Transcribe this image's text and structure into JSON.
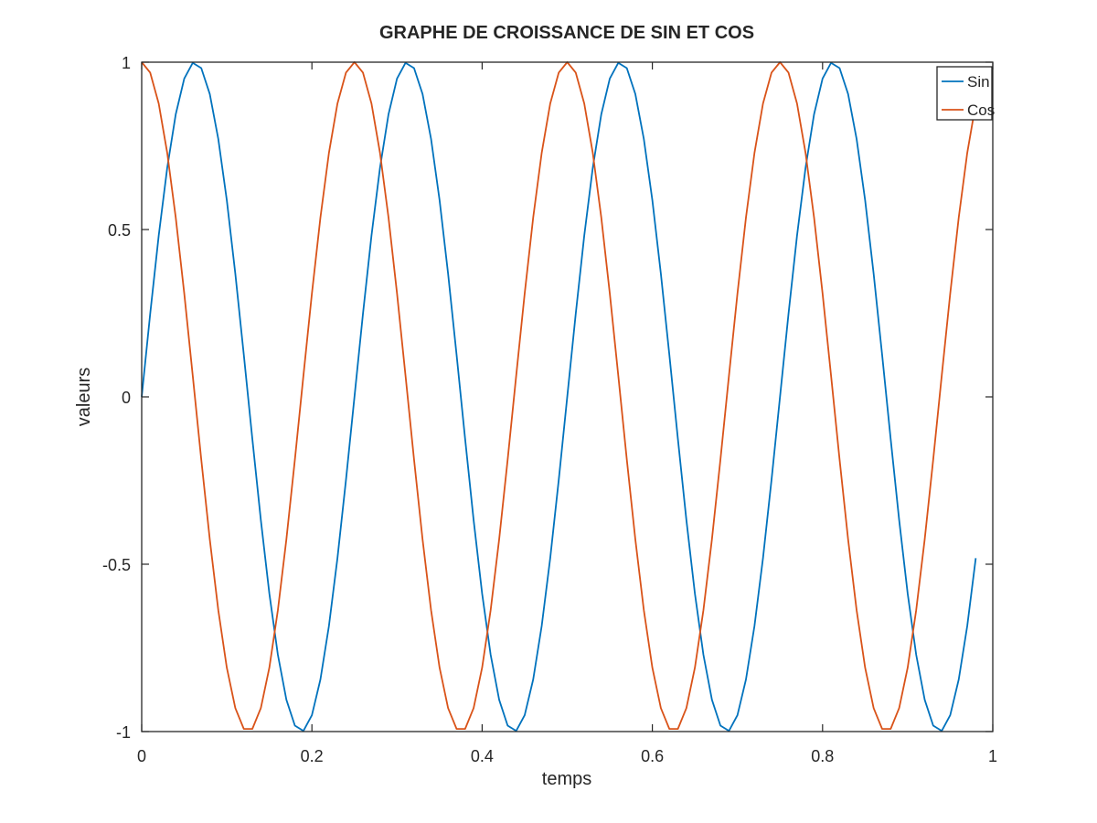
{
  "chart_data": {
    "type": "line",
    "title": "GRAPHE DE CROISSANCE DE SIN ET COS",
    "xlabel": "temps",
    "ylabel": "valeurs",
    "xlim": [
      0,
      1
    ],
    "ylim": [
      -1,
      1
    ],
    "x_ticks": [
      0,
      0.2,
      0.4,
      0.6,
      0.8,
      1
    ],
    "x_tick_labels": [
      "0",
      "0.2",
      "0.4",
      "0.6",
      "0.8",
      "1"
    ],
    "y_ticks": [
      -1,
      -0.5,
      0,
      0.5,
      1
    ],
    "y_tick_labels": [
      "-1",
      "-0.5",
      "0",
      "0.5",
      "1"
    ],
    "grid": false,
    "legend_position": "top-right",
    "series": [
      {
        "name": "Sin",
        "color": "#0072bd",
        "x": [
          0,
          0.01,
          0.02,
          0.03,
          0.04,
          0.05,
          0.06,
          0.07,
          0.08,
          0.09,
          0.1,
          0.11,
          0.12,
          0.13,
          0.14,
          0.15,
          0.16,
          0.17,
          0.18,
          0.19,
          0.2,
          0.21,
          0.22,
          0.23,
          0.24,
          0.25,
          0.26,
          0.27,
          0.28,
          0.29,
          0.3,
          0.31,
          0.32,
          0.33,
          0.34,
          0.35,
          0.36,
          0.37,
          0.38,
          0.39,
          0.4,
          0.41,
          0.42,
          0.43,
          0.44,
          0.45,
          0.46,
          0.47,
          0.48,
          0.49,
          0.5,
          0.51,
          0.52,
          0.53,
          0.54,
          0.55,
          0.56,
          0.57,
          0.58,
          0.59,
          0.6,
          0.61,
          0.62,
          0.63,
          0.64,
          0.65,
          0.66,
          0.67,
          0.68,
          0.69,
          0.7,
          0.71,
          0.72,
          0.73,
          0.74,
          0.75,
          0.76,
          0.77,
          0.78,
          0.79,
          0.8,
          0.81,
          0.82,
          0.83,
          0.84,
          0.85,
          0.86,
          0.87,
          0.88,
          0.89,
          0.9,
          0.91,
          0.92,
          0.93,
          0.94,
          0.95,
          0.96,
          0.97,
          0.98
        ],
        "y": [
          0,
          0.2487,
          0.4818,
          0.6845,
          0.8443,
          0.9511,
          0.998,
          0.9823,
          0.9048,
          0.7705,
          0.5878,
          0.3681,
          0.1253,
          -0.1253,
          -0.3681,
          -0.5878,
          -0.7705,
          -0.9048,
          -0.9823,
          -0.998,
          -0.9511,
          -0.8443,
          -0.6845,
          -0.4818,
          -0.2487,
          0,
          0.2487,
          0.4818,
          0.6845,
          0.8443,
          0.9511,
          0.998,
          0.9823,
          0.9048,
          0.7705,
          0.5878,
          0.3681,
          0.1253,
          -0.1253,
          -0.3681,
          -0.5878,
          -0.7705,
          -0.9048,
          -0.9823,
          -0.998,
          -0.9511,
          -0.8443,
          -0.6845,
          -0.4818,
          -0.2487,
          0,
          0.2487,
          0.4818,
          0.6845,
          0.8443,
          0.9511,
          0.998,
          0.9823,
          0.9048,
          0.7705,
          0.5878,
          0.3681,
          0.1253,
          -0.1253,
          -0.3681,
          -0.5878,
          -0.7705,
          -0.9048,
          -0.9823,
          -0.998,
          -0.9511,
          -0.8443,
          -0.6845,
          -0.4818,
          -0.2487,
          0,
          0.2487,
          0.4818,
          0.6845,
          0.8443,
          0.9511,
          0.998,
          0.9823,
          0.9048,
          0.7705,
          0.5878,
          0.3681,
          0.1253,
          -0.1253,
          -0.3681,
          -0.5878,
          -0.7705,
          -0.9048,
          -0.9823,
          -0.998,
          -0.9511,
          -0.8443,
          -0.6845,
          -0.4818
        ]
      },
      {
        "name": "Cos",
        "color": "#d95319",
        "x": [
          0,
          0.01,
          0.02,
          0.03,
          0.04,
          0.05,
          0.06,
          0.07,
          0.08,
          0.09,
          0.1,
          0.11,
          0.12,
          0.13,
          0.14,
          0.15,
          0.16,
          0.17,
          0.18,
          0.19,
          0.2,
          0.21,
          0.22,
          0.23,
          0.24,
          0.25,
          0.26,
          0.27,
          0.28,
          0.29,
          0.3,
          0.31,
          0.32,
          0.33,
          0.34,
          0.35,
          0.36,
          0.37,
          0.38,
          0.39,
          0.4,
          0.41,
          0.42,
          0.43,
          0.44,
          0.45,
          0.46,
          0.47,
          0.48,
          0.49,
          0.5,
          0.51,
          0.52,
          0.53,
          0.54,
          0.55,
          0.56,
          0.57,
          0.58,
          0.59,
          0.6,
          0.61,
          0.62,
          0.63,
          0.64,
          0.65,
          0.66,
          0.67,
          0.68,
          0.69,
          0.7,
          0.71,
          0.72,
          0.73,
          0.74,
          0.75,
          0.76,
          0.77,
          0.78,
          0.79,
          0.8,
          0.81,
          0.82,
          0.83,
          0.84,
          0.85,
          0.86,
          0.87,
          0.88,
          0.89,
          0.9,
          0.91,
          0.92,
          0.93,
          0.94,
          0.95,
          0.96,
          0.97,
          0.98
        ],
        "y": [
          1,
          0.9686,
          0.8763,
          0.729,
          0.5358,
          0.309,
          0.0628,
          -0.1874,
          -0.4258,
          -0.6374,
          -0.809,
          -0.9298,
          -0.9921,
          -0.9921,
          -0.9298,
          -0.809,
          -0.6374,
          -0.4258,
          -0.1874,
          0.0628,
          0.309,
          0.5358,
          0.729,
          0.8763,
          0.9686,
          1,
          0.9686,
          0.8763,
          0.729,
          0.5358,
          0.309,
          0.0628,
          -0.1874,
          -0.4258,
          -0.6374,
          -0.809,
          -0.9298,
          -0.9921,
          -0.9921,
          -0.9298,
          -0.809,
          -0.6374,
          -0.4258,
          -0.1874,
          0.0628,
          0.309,
          0.5358,
          0.729,
          0.8763,
          0.9686,
          1,
          0.9686,
          0.8763,
          0.729,
          0.5358,
          0.309,
          0.0628,
          -0.1874,
          -0.4258,
          -0.6374,
          -0.809,
          -0.9298,
          -0.9921,
          -0.9921,
          -0.9298,
          -0.809,
          -0.6374,
          -0.4258,
          -0.1874,
          0.0628,
          0.309,
          0.5358,
          0.729,
          0.8763,
          0.9686,
          1,
          0.9686,
          0.8763,
          0.729,
          0.5358,
          0.309,
          0.0628,
          -0.1874,
          -0.4258,
          -0.6374,
          -0.809,
          -0.9298,
          -0.9921,
          -0.9921,
          -0.9298,
          -0.809,
          -0.6374,
          -0.4258,
          -0.1874,
          0.0628,
          0.309,
          0.5358,
          0.729,
          0.8763
        ]
      }
    ]
  }
}
